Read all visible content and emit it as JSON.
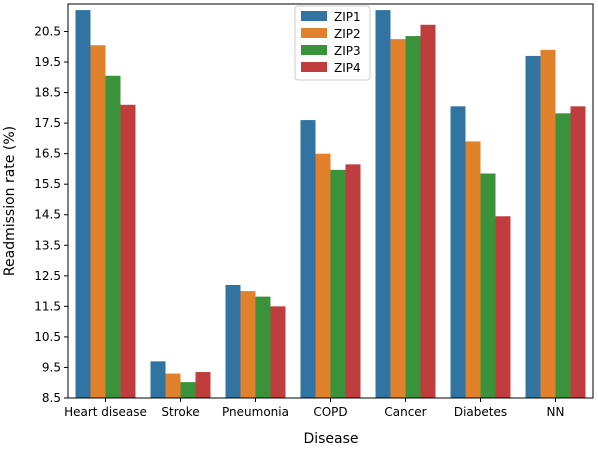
{
  "chart_data": {
    "type": "bar",
    "title": "",
    "xlabel": "Disease",
    "ylabel": "Readmission rate (%)",
    "ylim": [
      8.5,
      21.4
    ],
    "yticks": [
      8.5,
      9.5,
      10.5,
      11.5,
      12.5,
      13.5,
      14.5,
      15.5,
      16.5,
      17.5,
      18.5,
      19.5,
      20.5
    ],
    "ytick_labels": [
      "8.5",
      "9.5",
      "10.5",
      "11.5",
      "12.5",
      "13.5",
      "14.5",
      "15.5",
      "16.5",
      "17.5",
      "18.5",
      "19.5",
      "20.5"
    ],
    "categories": [
      "Heart disease",
      "Stroke",
      "Pneumonia",
      "COPD",
      "Cancer",
      "Diabetes",
      "NN"
    ],
    "series": [
      {
        "name": "ZIP1",
        "color": "#3274a1",
        "values": [
          21.2,
          9.7,
          12.2,
          17.6,
          21.2,
          18.05,
          19.7
        ]
      },
      {
        "name": "ZIP2",
        "color": "#e1812c",
        "values": [
          20.05,
          9.3,
          12.0,
          16.5,
          20.25,
          16.9,
          19.9
        ]
      },
      {
        "name": "ZIP3",
        "color": "#3a923a",
        "values": [
          19.05,
          9.02,
          11.82,
          15.97,
          20.35,
          15.85,
          17.82
        ]
      },
      {
        "name": "ZIP4",
        "color": "#c03d3e",
        "values": [
          18.1,
          9.35,
          11.5,
          16.15,
          20.72,
          14.45,
          18.05
        ]
      }
    ],
    "grid": false,
    "legend_position": "top-center"
  }
}
